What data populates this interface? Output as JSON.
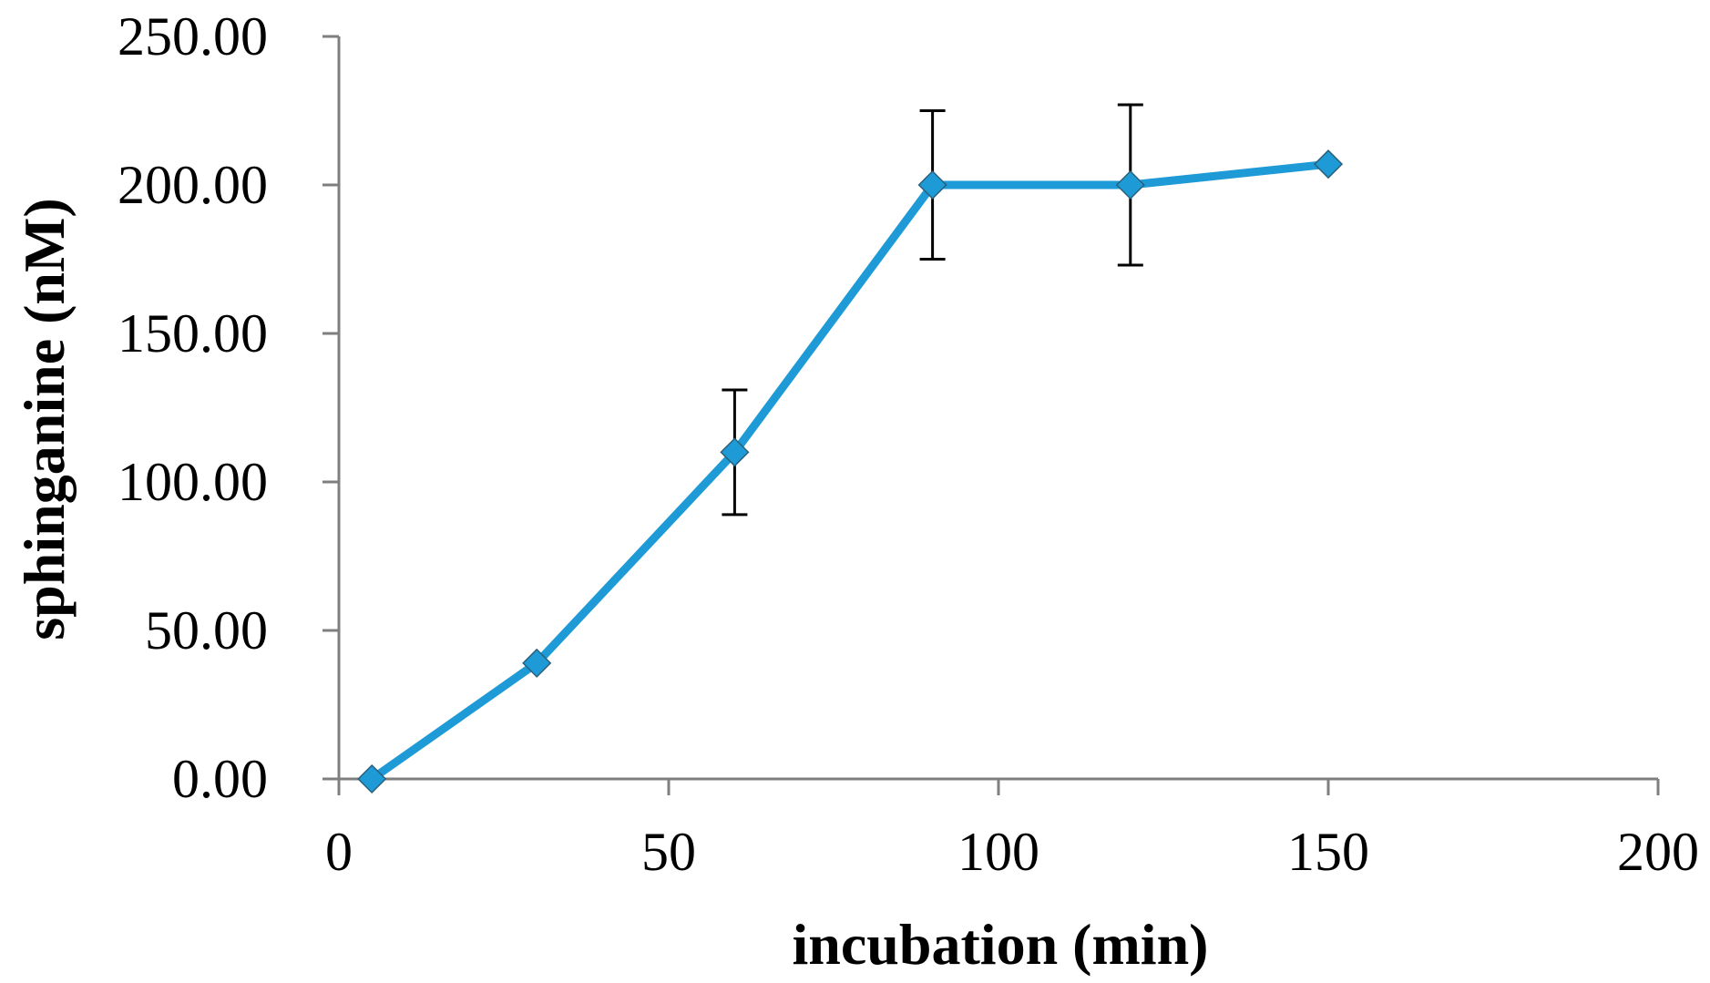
{
  "chart_data": {
    "type": "line",
    "title": "",
    "xlabel": "incubation (min)",
    "ylabel": "sphinganine (nM)",
    "xlim": [
      0,
      200
    ],
    "ylim": [
      0,
      250
    ],
    "xticks": [
      0,
      50,
      100,
      150,
      200
    ],
    "xtick_labels": [
      "0",
      "50",
      "100",
      "150",
      "200"
    ],
    "yticks": [
      0,
      50,
      100,
      150,
      200,
      250
    ],
    "ytick_labels": [
      "0.00",
      "50.00",
      "100.00",
      "150.00",
      "200.00",
      "250.00"
    ],
    "grid": false,
    "legend": "none",
    "series": [
      {
        "name": "sphinganine",
        "color": "#1e9bd7",
        "x": [
          5,
          30,
          60,
          90,
          120,
          150
        ],
        "values": [
          0,
          39,
          110,
          200,
          200,
          207
        ],
        "error": [
          0,
          0,
          21,
          25,
          27,
          0
        ]
      }
    ]
  }
}
